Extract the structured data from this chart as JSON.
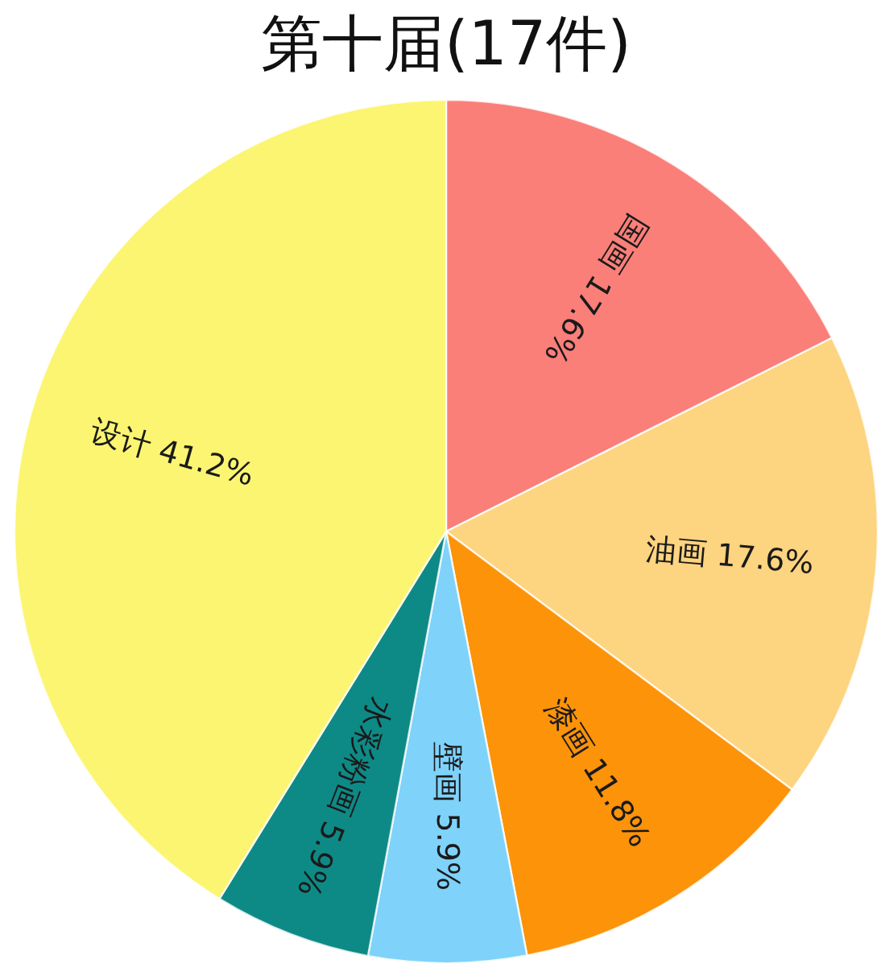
{
  "chart_data": {
    "type": "pie",
    "title": "第十届(17件)",
    "categories": [
      "国画",
      "油画",
      "漆画",
      "壁画",
      "水彩粉画",
      "设计"
    ],
    "values": [
      17.6,
      17.6,
      11.8,
      5.9,
      5.9,
      41.2
    ],
    "colors": [
      "#fa7f79",
      "#fdd47f",
      "#fc9309",
      "#7fd2fa",
      "#0e8a86",
      "#fbf572"
    ],
    "value_labels": [
      "17.6%",
      "17.6%",
      "11.8%",
      "5.9%",
      "5.9%",
      "41.2%"
    ]
  }
}
